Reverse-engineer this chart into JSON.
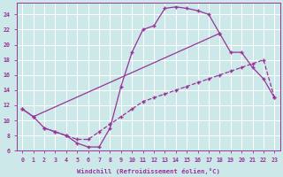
{
  "background_color": "#cce8e8",
  "grid_color": "#ffffff",
  "line_color": "#993399",
  "xlabel": "Windchill (Refroidissement éolien,°C)",
  "xlim": [
    -0.5,
    23.5
  ],
  "ylim": [
    6,
    25.5
  ],
  "yticks": [
    6,
    8,
    10,
    12,
    14,
    16,
    18,
    20,
    22,
    24
  ],
  "xticks": [
    0,
    1,
    2,
    3,
    4,
    5,
    6,
    7,
    8,
    9,
    10,
    11,
    12,
    13,
    14,
    15,
    16,
    17,
    18,
    19,
    20,
    21,
    22,
    23
  ],
  "curve1_x": [
    0,
    1,
    2,
    3,
    4,
    5,
    6,
    7,
    8,
    9,
    10,
    11,
    12,
    13,
    14,
    15,
    16,
    17,
    18
  ],
  "curve1_y": [
    11.5,
    10.5,
    9.0,
    8.5,
    8.0,
    7.0,
    6.5,
    6.5,
    9.0,
    14.5,
    19.0,
    22.0,
    22.5,
    24.8,
    25.0,
    24.8,
    24.5,
    24.0,
    21.5
  ],
  "curve2_x": [
    2,
    3,
    4,
    5,
    6,
    7,
    8,
    9,
    10,
    11,
    12,
    13,
    14,
    15,
    16,
    17,
    18,
    19,
    20,
    21,
    22,
    23
  ],
  "curve2_y": [
    9.0,
    8.5,
    8.0,
    7.5,
    7.5,
    8.5,
    9.5,
    10.5,
    11.5,
    12.5,
    13.0,
    13.5,
    14.0,
    14.5,
    15.0,
    15.5,
    16.0,
    16.5,
    17.0,
    17.5,
    18.0,
    13.0
  ],
  "curve3_x": [
    0,
    1,
    18,
    19,
    20,
    21,
    22,
    23
  ],
  "curve3_y": [
    11.5,
    10.5,
    21.5,
    19.0,
    19.0,
    17.0,
    15.5,
    13.0
  ]
}
